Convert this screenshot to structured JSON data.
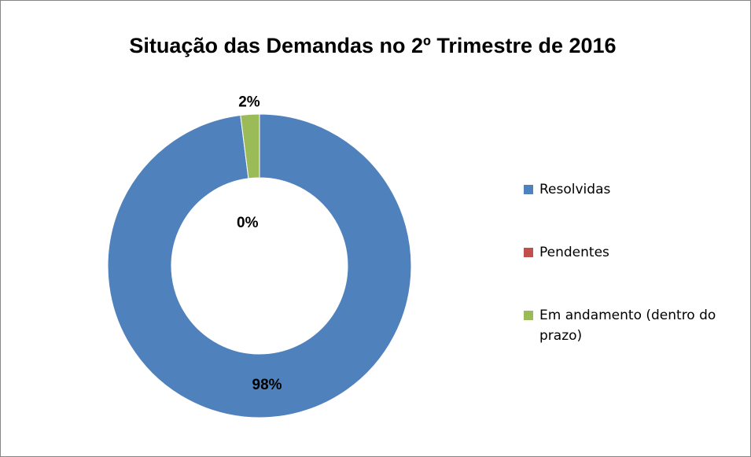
{
  "chart_data": {
    "type": "donut",
    "title": "Situação das Demandas no 2º Trimestre de 2016",
    "categories": [
      "Resolvidas",
      "Pendentes",
      "Em andamento (dentro do prazo)"
    ],
    "values": [
      98,
      0,
      2
    ],
    "value_labels": [
      "98%",
      "0%",
      "2%"
    ],
    "colors": [
      "#4f81bd",
      "#c0504d",
      "#9bbb59"
    ],
    "legend": "right"
  }
}
